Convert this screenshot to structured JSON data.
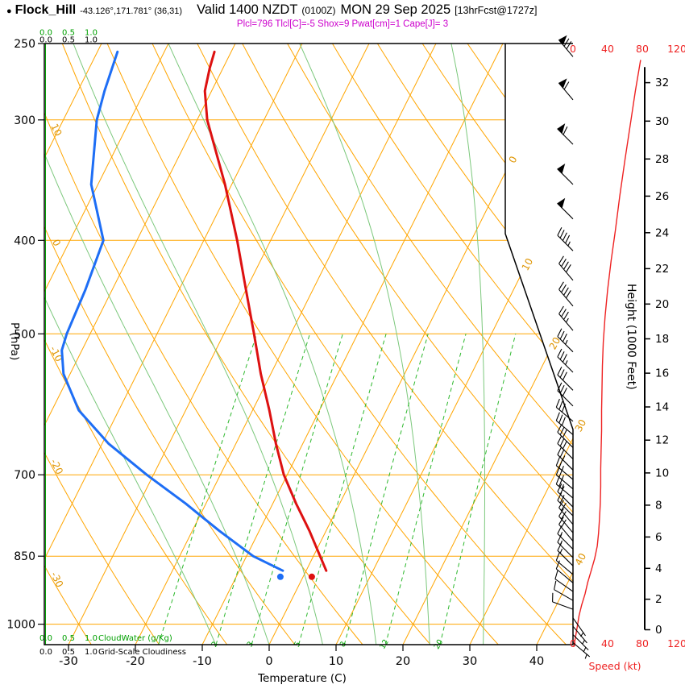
{
  "header": {
    "bullet": "●",
    "station": "Flock_Hill",
    "coords": "-43.126°,171.781° (36,31)",
    "valid": "Valid 1400 NZDT",
    "zulu": "(0100Z)",
    "date": "MON 29 Sep 2025",
    "fcst": "[13hrFcst@1727z]",
    "indices": "Plcl=796 Tlcl[C]=-5 Shox=9 Pwat[cm]=1 Cape[J]= 3"
  },
  "colors": {
    "grid_orange": "#FFA500",
    "label_orange": "#DE9400",
    "green": "#00A000",
    "mixing_green": "#2DB82D",
    "moist_green": "#7CC87C",
    "temperature_red": "#DD1111",
    "dewpoint_blue": "#1E6EF5",
    "speed_red": "#EE2222",
    "magenta": "#CC00CC",
    "black": "#000000"
  },
  "chart_data": {
    "type": "skewt-logp-sounding",
    "pressure_axis": {
      "label": "P (hPa)",
      "ticks": [
        250,
        300,
        400,
        500,
        700,
        850,
        1000
      ],
      "range": [
        250,
        1050
      ]
    },
    "temperature_axis": {
      "label": "Temperature (C)",
      "ticks": [
        -30,
        -20,
        -10,
        0,
        10,
        20,
        30,
        40
      ]
    },
    "height_axis": {
      "label": "Height (1000 Feet)",
      "ticks": [
        0,
        2,
        4,
        6,
        8,
        10,
        12,
        14,
        16,
        18,
        20,
        22,
        24,
        26,
        28,
        30,
        32
      ]
    },
    "speed_axis": {
      "label": "Speed (kt)",
      "ticks": [
        0,
        40,
        80,
        120
      ]
    },
    "cloudwater_scale": {
      "label": "CloudWater (g/Kg)",
      "ticks": [
        "0.0",
        "0.5",
        "1.0"
      ]
    },
    "cloudiness_scale": {
      "label": "Grid-Scale Cloudiness",
      "ticks": [
        "0.0",
        "0.5",
        "1.0"
      ]
    },
    "isotherm_lines_c": [
      -80,
      -70,
      -60,
      -50,
      -40,
      -30,
      -20,
      -10,
      0,
      10,
      20,
      30,
      40,
      50
    ],
    "isotherm_labels_c": [
      0,
      10,
      20,
      30,
      40
    ],
    "dry_adiabat_lines_c": [
      -40,
      -30,
      -20,
      -10,
      0,
      10,
      20,
      30,
      40,
      50,
      60,
      70,
      80,
      90,
      100,
      110,
      120,
      130,
      140
    ],
    "dry_adiabat_labels_c": [
      10,
      0,
      -10,
      -20,
      -30
    ],
    "moist_adiabat_lines_c": [
      -8,
      0,
      8,
      16,
      24,
      32
    ],
    "mixing_ratio_lines_gkg": [
      1,
      2,
      3,
      5,
      8,
      12,
      20
    ],
    "mixing_ratio_labels_gkg": [
      2,
      3,
      5,
      8,
      12,
      20
    ],
    "temperature_profile_p_c": [
      [
        880,
        3
      ],
      [
        850,
        1
      ],
      [
        800,
        -2.5
      ],
      [
        750,
        -6.5
      ],
      [
        700,
        -10.5
      ],
      [
        650,
        -14
      ],
      [
        600,
        -17.5
      ],
      [
        550,
        -21.5
      ],
      [
        500,
        -25.5
      ],
      [
        450,
        -30
      ],
      [
        400,
        -35
      ],
      [
        350,
        -41
      ],
      [
        300,
        -48.5
      ],
      [
        280,
        -51
      ],
      [
        265,
        -52
      ],
      [
        255,
        -52.5
      ]
    ],
    "dewpoint_profile_p_c": [
      [
        880,
        -3.5
      ],
      [
        850,
        -9
      ],
      [
        800,
        -16
      ],
      [
        750,
        -23
      ],
      [
        700,
        -31
      ],
      [
        650,
        -39
      ],
      [
        600,
        -46
      ],
      [
        550,
        -51
      ],
      [
        520,
        -53
      ],
      [
        500,
        -53.5
      ],
      [
        450,
        -54
      ],
      [
        400,
        -55
      ],
      [
        350,
        -61
      ],
      [
        300,
        -65
      ],
      [
        280,
        -66
      ],
      [
        255,
        -67
      ]
    ],
    "surface_markers": {
      "temperature": {
        "p": 893,
        "t": 1.3
      },
      "dewpoint": {
        "p": 893,
        "t": -3.4
      }
    },
    "wind_barbs_p_dir_kt": [
      [
        1045,
        130,
        4
      ],
      [
        1025,
        135,
        4
      ],
      [
        1005,
        140,
        5
      ],
      [
        985,
        145,
        5
      ],
      [
        965,
        290,
        8
      ],
      [
        945,
        300,
        8
      ],
      [
        925,
        305,
        10
      ],
      [
        906,
        310,
        10
      ],
      [
        888,
        310,
        12
      ],
      [
        870,
        315,
        15
      ],
      [
        853,
        315,
        15
      ],
      [
        836,
        315,
        15
      ],
      [
        820,
        320,
        18
      ],
      [
        804,
        320,
        20
      ],
      [
        788,
        320,
        20
      ],
      [
        772,
        315,
        20
      ],
      [
        756,
        315,
        22
      ],
      [
        740,
        310,
        25
      ],
      [
        724,
        310,
        25
      ],
      [
        708,
        310,
        25
      ],
      [
        692,
        315,
        25
      ],
      [
        674,
        315,
        28
      ],
      [
        656,
        315,
        30
      ],
      [
        636,
        310,
        30
      ],
      [
        616,
        310,
        30
      ],
      [
        594,
        315,
        30
      ],
      [
        572,
        315,
        32
      ],
      [
        548,
        315,
        35
      ],
      [
        522,
        315,
        35
      ],
      [
        496,
        320,
        35
      ],
      [
        468,
        320,
        38
      ],
      [
        440,
        320,
        40
      ],
      [
        410,
        315,
        45
      ],
      [
        380,
        315,
        48
      ],
      [
        350,
        315,
        52
      ],
      [
        318,
        315,
        58
      ],
      [
        286,
        320,
        62
      ],
      [
        258,
        320,
        70
      ]
    ],
    "wind_speed_profile_p_kt": [
      [
        1055,
        1
      ],
      [
        1030,
        3
      ],
      [
        1005,
        5
      ],
      [
        980,
        7
      ],
      [
        955,
        10
      ],
      [
        930,
        14
      ],
      [
        905,
        17
      ],
      [
        880,
        21
      ],
      [
        855,
        25
      ],
      [
        830,
        28
      ],
      [
        805,
        29.5
      ],
      [
        780,
        30.5
      ],
      [
        750,
        31.5
      ],
      [
        720,
        32
      ],
      [
        690,
        32
      ],
      [
        660,
        32.5
      ],
      [
        630,
        33
      ],
      [
        600,
        33
      ],
      [
        570,
        33.5
      ],
      [
        540,
        34
      ],
      [
        510,
        35
      ],
      [
        480,
        37
      ],
      [
        450,
        40
      ],
      [
        420,
        44
      ],
      [
        390,
        49
      ],
      [
        360,
        54
      ],
      [
        330,
        60
      ],
      [
        300,
        67
      ],
      [
        280,
        72
      ],
      [
        260,
        78
      ]
    ]
  }
}
